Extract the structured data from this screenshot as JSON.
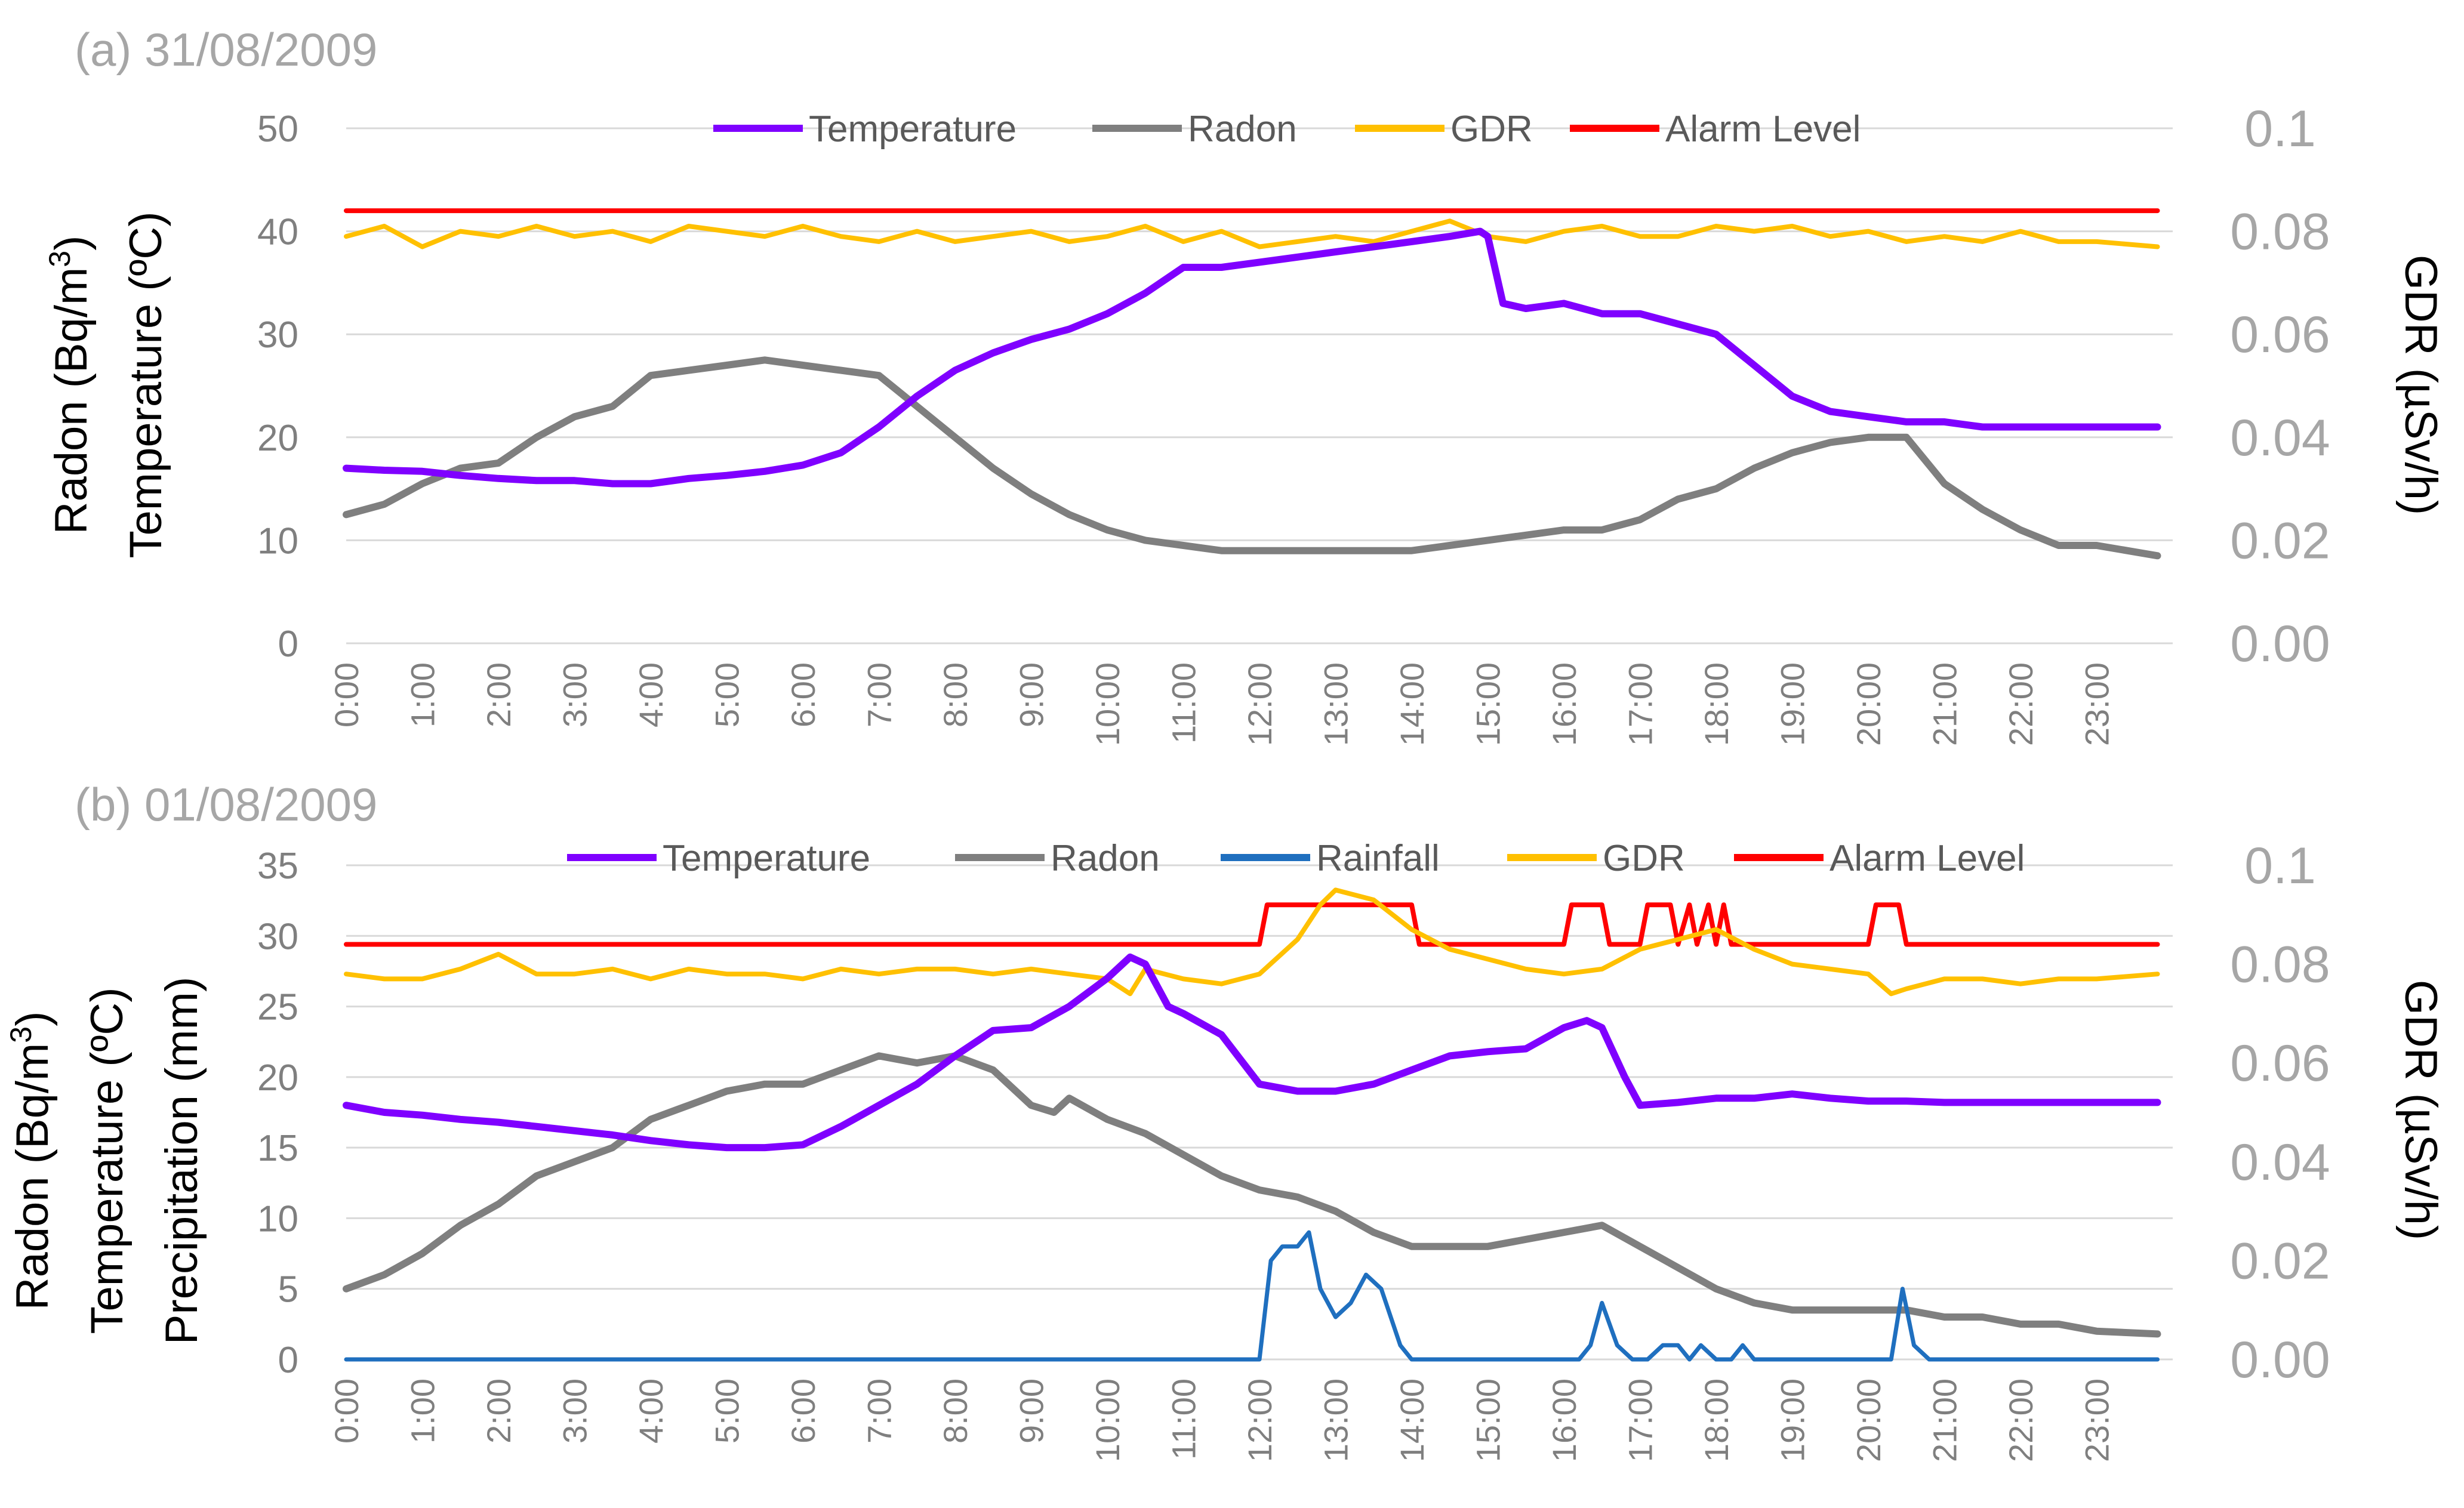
{
  "colors": {
    "temperature": "#7F00FF",
    "radon": "#7F7F7F",
    "rainfall": "#1F6FBF",
    "gdr": "#FFC000",
    "alarm": "#FF0000",
    "axis_text": "#7F7F7F",
    "grid": "#D9D9D9"
  },
  "chart_data": [
    {
      "type": "line",
      "title": "(a) 31/08/2009",
      "left_ylabel_lines": [
        "Radon (Bq/m",
        "Temperature (ºC)"
      ],
      "left_ylabel_sup": "3",
      "left_ylabel_tail": ")",
      "right_ylabel": "GDR (µSv/h)",
      "left_ylim": [
        0,
        50
      ],
      "left_ticks": [
        0,
        10,
        20,
        30,
        40,
        50
      ],
      "right_ylim": [
        0,
        0.1
      ],
      "right_tick_labels": [
        "0.00",
        "0.02",
        "0.04",
        "0.06",
        "0.08",
        "0.1"
      ],
      "x_tick_labels": [
        "0:00",
        "1:00",
        "2:00",
        "3:00",
        "4:00",
        "5:00",
        "6:00",
        "7:00",
        "8:00",
        "9:00",
        "10:00",
        "11:00",
        "12:00",
        "13:00",
        "14:00",
        "15:00",
        "16:00",
        "17:00",
        "18:00",
        "19:00",
        "20:00",
        "21:00",
        "22:00",
        "23:00"
      ],
      "series": [
        {
          "name": "Temperature",
          "axis": "left",
          "color_key": "temperature",
          "x": [
            0,
            0.5,
            1,
            1.5,
            2,
            2.5,
            3,
            3.5,
            4,
            4.5,
            5,
            5.5,
            6,
            6.5,
            7,
            7.5,
            8,
            8.5,
            9,
            9.5,
            10,
            10.5,
            11,
            11.5,
            12,
            12.5,
            13,
            13.5,
            14,
            14.5,
            14.9,
            15,
            15.2,
            15.5,
            16,
            16.5,
            17,
            17.5,
            18,
            18.5,
            19,
            19.5,
            20,
            20.5,
            21,
            21.5,
            22,
            22.5,
            23,
            23.8
          ],
          "y": [
            17,
            16.8,
            16.7,
            16.3,
            16,
            15.8,
            15.8,
            15.5,
            15.5,
            16,
            16.3,
            16.7,
            17.3,
            18.5,
            21,
            24,
            26.5,
            28.2,
            29.5,
            30.5,
            32,
            34,
            36.5,
            36.5,
            37,
            37.5,
            38,
            38.5,
            39,
            39.5,
            40,
            39.5,
            33,
            32.5,
            33,
            32,
            32,
            31,
            30,
            27,
            24,
            22.5,
            22,
            21.5,
            21.5,
            21,
            21,
            21,
            21,
            21
          ]
        },
        {
          "name": "Radon",
          "axis": "left",
          "color_key": "radon",
          "x": [
            0,
            0.5,
            1,
            1.5,
            2,
            2.5,
            3,
            3.5,
            4,
            4.5,
            5,
            5.5,
            6,
            6.5,
            7,
            7.5,
            8,
            8.5,
            9,
            9.5,
            10,
            10.5,
            11,
            11.5,
            12,
            12.5,
            13,
            13.5,
            14,
            14.5,
            15,
            15.5,
            16,
            16.5,
            17,
            17.5,
            18,
            18.5,
            19,
            19.5,
            20,
            20.5,
            21,
            21.5,
            22,
            22.5,
            23,
            23.8
          ],
          "y": [
            12.5,
            13.5,
            15.5,
            17,
            17.5,
            20,
            22,
            23,
            26,
            26.5,
            27,
            27.5,
            27,
            26.5,
            26,
            23,
            20,
            17,
            14.5,
            12.5,
            11,
            10,
            9.5,
            9,
            9,
            9,
            9,
            9,
            9,
            9.5,
            10,
            10.5,
            11,
            11,
            12,
            14,
            15,
            17,
            18.5,
            19.5,
            20,
            20,
            15.5,
            13,
            11,
            9.5,
            9.5,
            8.5
          ]
        },
        {
          "name": "GDR",
          "axis": "right",
          "color_key": "gdr",
          "x": [
            0,
            0.5,
            1,
            1.5,
            2,
            2.5,
            3,
            3.5,
            4,
            4.5,
            5,
            5.5,
            6,
            6.5,
            7,
            7.5,
            8,
            8.5,
            9,
            9.5,
            10,
            10.5,
            11,
            11.5,
            12,
            12.5,
            13,
            13.5,
            14,
            14.5,
            15,
            15.5,
            16,
            16.5,
            17,
            17.5,
            18,
            18.5,
            19,
            19.5,
            20,
            20.5,
            21,
            21.5,
            22,
            22.5,
            23,
            23.8
          ],
          "y": [
            0.079,
            0.081,
            0.077,
            0.08,
            0.079,
            0.081,
            0.079,
            0.08,
            0.078,
            0.081,
            0.08,
            0.079,
            0.081,
            0.079,
            0.078,
            0.08,
            0.078,
            0.079,
            0.08,
            0.078,
            0.079,
            0.081,
            0.078,
            0.08,
            0.077,
            0.078,
            0.079,
            0.078,
            0.08,
            0.082,
            0.079,
            0.078,
            0.08,
            0.081,
            0.079,
            0.079,
            0.081,
            0.08,
            0.081,
            0.079,
            0.08,
            0.078,
            0.079,
            0.078,
            0.08,
            0.078,
            0.078,
            0.077
          ]
        },
        {
          "name": "Alarm Level",
          "axis": "right",
          "color_key": "alarm",
          "x": [
            0,
            23.8
          ],
          "y": [
            0.084,
            0.084
          ]
        }
      ]
    },
    {
      "type": "line",
      "title": "(b) 01/08/2009",
      "left_ylabel_lines": [
        "Radon (Bq/m",
        "Temperature (ºC)",
        "Precipitation (mm)"
      ],
      "left_ylabel_sup": "3",
      "left_ylabel_tail": ")",
      "right_ylabel": "GDR (µSv/h)",
      "left_ylim": [
        0,
        35
      ],
      "left_ticks": [
        0,
        5,
        10,
        15,
        20,
        25,
        30,
        35
      ],
      "right_ylim": [
        0,
        0.1
      ],
      "right_tick_labels": [
        "0.00",
        "0.02",
        "0.04",
        "0.06",
        "0.08",
        "0.1"
      ],
      "x_tick_labels": [
        "0:00",
        "1:00",
        "2:00",
        "3:00",
        "4:00",
        "5:00",
        "6:00",
        "7:00",
        "8:00",
        "9:00",
        "10:00",
        "11:00",
        "12:00",
        "13:00",
        "14:00",
        "15:00",
        "16:00",
        "17:00",
        "18:00",
        "19:00",
        "20:00",
        "21:00",
        "22:00",
        "23:00"
      ],
      "series": [
        {
          "name": "Temperature",
          "axis": "left",
          "color_key": "temperature",
          "x": [
            0,
            0.5,
            1,
            1.5,
            2,
            2.5,
            3,
            3.5,
            4,
            4.5,
            5,
            5.5,
            6,
            6.5,
            7,
            7.5,
            8,
            8.5,
            9,
            9.5,
            10,
            10.3,
            10.5,
            10.8,
            11,
            11.5,
            12,
            12.5,
            13,
            13.5,
            14,
            14.5,
            15,
            15.5,
            16,
            16.3,
            16.5,
            16.8,
            17,
            17.5,
            18,
            18.5,
            19,
            19.5,
            20,
            20.5,
            21,
            21.5,
            22,
            22.5,
            23,
            23.8
          ],
          "y": [
            18,
            17.5,
            17.3,
            17,
            16.8,
            16.5,
            16.2,
            15.9,
            15.5,
            15.2,
            15,
            15,
            15.2,
            16.5,
            18,
            19.5,
            21.5,
            23.3,
            23.5,
            25,
            27,
            28.5,
            28,
            25,
            24.5,
            23,
            19.5,
            19,
            19,
            19.5,
            20.5,
            21.5,
            21.8,
            22,
            23.5,
            24,
            23.5,
            20,
            18,
            18.2,
            18.5,
            18.5,
            18.8,
            18.5,
            18.3,
            18.3,
            18.2,
            18.2,
            18.2,
            18.2,
            18.2,
            18.2
          ]
        },
        {
          "name": "Radon",
          "axis": "left",
          "color_key": "radon",
          "x": [
            0,
            0.5,
            1,
            1.5,
            2,
            2.5,
            3,
            3.5,
            4,
            4.5,
            5,
            5.5,
            6,
            6.5,
            7,
            7.5,
            8,
            8.5,
            9,
            9.3,
            9.5,
            10,
            10.5,
            11,
            11.5,
            12,
            12.5,
            13,
            13.5,
            14,
            14.5,
            15,
            15.5,
            16,
            16.5,
            17,
            17.5,
            18,
            18.5,
            19,
            19.5,
            20,
            20.5,
            21,
            21.5,
            22,
            22.5,
            23,
            23.8
          ],
          "y": [
            5,
            6,
            7.5,
            9.5,
            11,
            13,
            14,
            15,
            17,
            18,
            19,
            19.5,
            19.5,
            20.5,
            21.5,
            21,
            21.5,
            20.5,
            18,
            17.5,
            18.5,
            17,
            16,
            14.5,
            13,
            12,
            11.5,
            10.5,
            9,
            8,
            8,
            8,
            8.5,
            9,
            9.5,
            8,
            6.5,
            5,
            4,
            3.5,
            3.5,
            3.5,
            3.5,
            3,
            3,
            2.5,
            2.5,
            2,
            1.8
          ]
        },
        {
          "name": "Rainfall",
          "axis": "left",
          "color_key": "rainfall",
          "x": [
            0,
            12,
            12.15,
            12.3,
            12.5,
            12.65,
            12.8,
            13,
            13.2,
            13.4,
            13.6,
            13.85,
            14,
            16,
            16.2,
            16.35,
            16.5,
            16.7,
            16.9,
            17.1,
            17.3,
            17.5,
            17.65,
            17.8,
            18,
            18.2,
            18.35,
            18.5,
            20,
            20.3,
            20.45,
            20.6,
            20.8,
            23.8
          ],
          "y": [
            0,
            0,
            7,
            8,
            8,
            9,
            5,
            3,
            4,
            6,
            5,
            1,
            0,
            0,
            0,
            1,
            4,
            1,
            0,
            0,
            1,
            1,
            0,
            1,
            0,
            0,
            1,
            0,
            0,
            0,
            5,
            1,
            0,
            0
          ]
        },
        {
          "name": "GDR",
          "axis": "right",
          "color_key": "gdr",
          "x": [
            0,
            0.5,
            1,
            1.5,
            2,
            2.5,
            3,
            3.5,
            4,
            4.5,
            5,
            5.5,
            6,
            6.5,
            7,
            7.5,
            8,
            8.5,
            9,
            9.5,
            10,
            10.3,
            10.5,
            11,
            11.5,
            12,
            12.5,
            12.8,
            13,
            13.5,
            14,
            14.5,
            15,
            15.5,
            16,
            16.5,
            17,
            17.5,
            18,
            18.5,
            19,
            19.5,
            20,
            20.3,
            20.5,
            21,
            21.5,
            22,
            22.5,
            23,
            23.8
          ],
          "y": [
            0.078,
            0.077,
            0.077,
            0.079,
            0.082,
            0.078,
            0.078,
            0.079,
            0.077,
            0.079,
            0.078,
            0.078,
            0.077,
            0.079,
            0.078,
            0.079,
            0.079,
            0.078,
            0.079,
            0.078,
            0.077,
            0.074,
            0.079,
            0.077,
            0.076,
            0.078,
            0.085,
            0.092,
            0.095,
            0.093,
            0.087,
            0.083,
            0.081,
            0.079,
            0.078,
            0.079,
            0.083,
            0.085,
            0.087,
            0.083,
            0.08,
            0.079,
            0.078,
            0.074,
            0.075,
            0.077,
            0.077,
            0.076,
            0.077,
            0.077,
            0.078
          ]
        },
        {
          "name": "Alarm Level",
          "axis": "right",
          "color_key": "alarm",
          "x": [
            0,
            12,
            12.1,
            14,
            14.1,
            16,
            16.1,
            16.5,
            16.6,
            17,
            17.1,
            17.4,
            17.5,
            17.65,
            17.75,
            17.9,
            18,
            18.1,
            18.2,
            18.3,
            18.4,
            20,
            20.1,
            20.4,
            20.5,
            23.8
          ],
          "y": [
            0.084,
            0.084,
            0.092,
            0.092,
            0.084,
            0.084,
            0.092,
            0.092,
            0.084,
            0.084,
            0.092,
            0.092,
            0.084,
            0.092,
            0.084,
            0.092,
            0.084,
            0.092,
            0.084,
            0.084,
            0.084,
            0.084,
            0.092,
            0.092,
            0.084,
            0.084
          ]
        }
      ]
    }
  ]
}
